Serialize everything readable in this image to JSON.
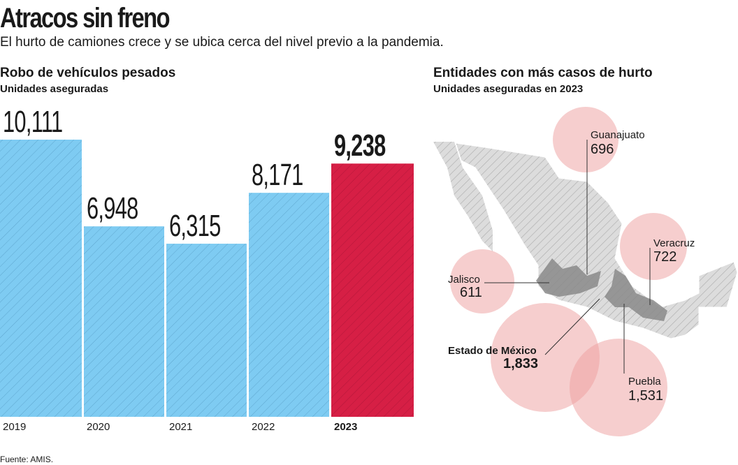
{
  "title": "Atracos sin freno",
  "subtitle": "El hurto de camiones crece y se ubica cerca del nivel previo a la pandemia.",
  "left": {
    "title": "Robo de vehículos pesados",
    "subtitle": "Unidades aseguradas"
  },
  "right": {
    "title": "Entidades con más casos de hurto",
    "subtitle": "Unidades aseguradas en 2023",
    "states": [
      {
        "name": "Guanajuato",
        "value": "696"
      },
      {
        "name": "Veracruz",
        "value": "722"
      },
      {
        "name": "Jalisco",
        "value": "611"
      },
      {
        "name": "Estado de México",
        "value": "1,833"
      },
      {
        "name": "Puebla",
        "value": "1,531"
      }
    ]
  },
  "source": "Fuente: AMIS.",
  "colors": {
    "bar": "#7ecbf2",
    "highlight": "#d61f45",
    "bubble": "#f0b0b0",
    "map": "#dcdcdc",
    "mapDark": "#8a8a8a"
  },
  "chart_data": {
    "type": "bar",
    "title": "Robo de vehículos pesados",
    "ylabel": "Unidades aseguradas",
    "categories": [
      "2019",
      "2020",
      "2021",
      "2022",
      "2023"
    ],
    "values": [
      10111,
      6948,
      6315,
      8171,
      9238
    ],
    "labels": [
      "10,111",
      "6,948",
      "6,315",
      "8,171",
      "9,238"
    ],
    "highlight": "2023"
  }
}
